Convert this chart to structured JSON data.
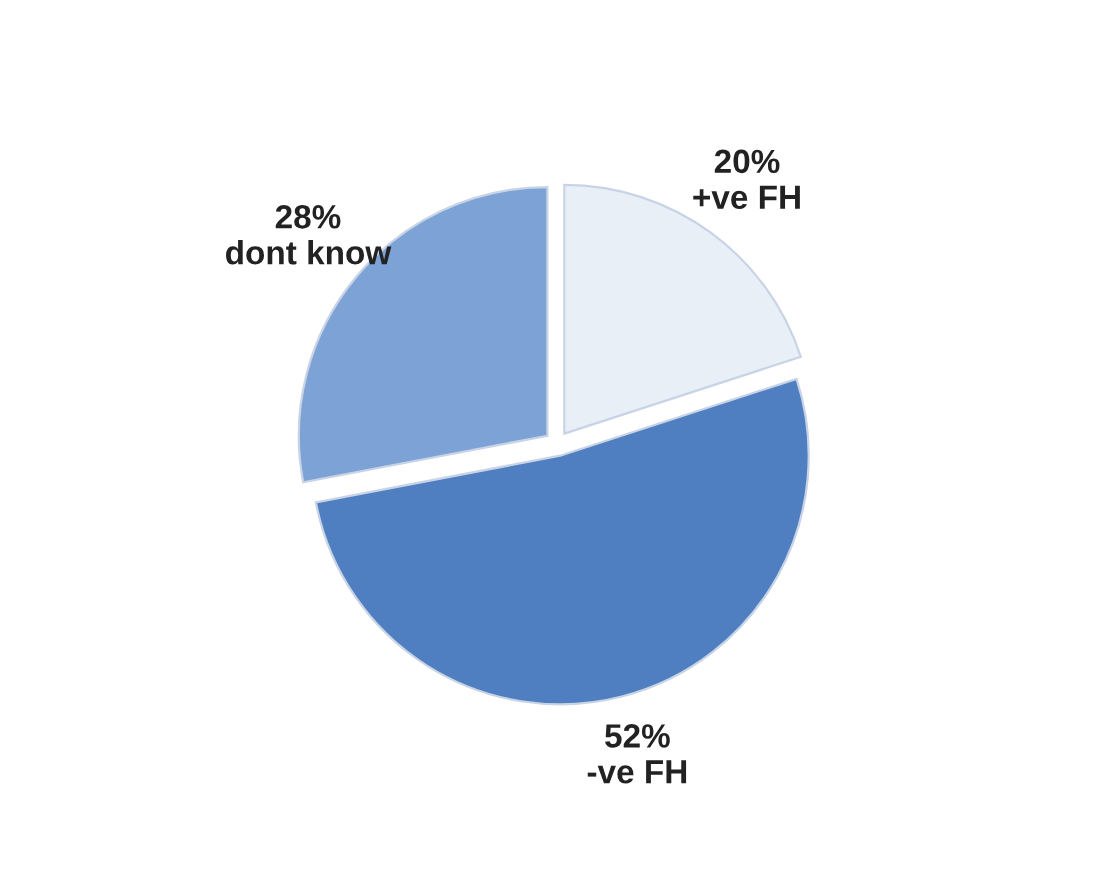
{
  "chart_data": {
    "type": "pie",
    "categories": [
      "+ve FH",
      "-ve FH",
      "dont know"
    ],
    "values": [
      20,
      52,
      28
    ],
    "value_labels": [
      "20%",
      "52%",
      "28%"
    ],
    "colors": [
      "#e9eff7",
      "#4f7fc0",
      "#7da2d6"
    ]
  }
}
